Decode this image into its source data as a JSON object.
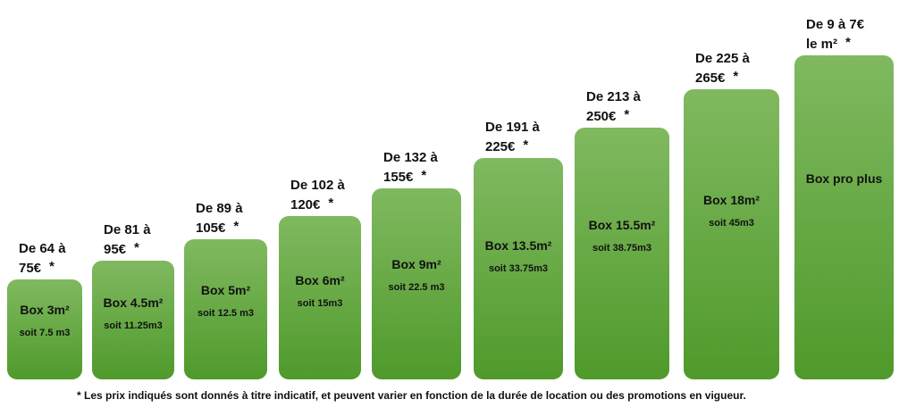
{
  "boxes": [
    {
      "price_from": "De 64 à",
      "price_to": "75€",
      "name": "Box 3m²",
      "volume": "soit 7.5 m3"
    },
    {
      "price_from": "De 81 à",
      "price_to": "95€",
      "name": "Box 4.5m²",
      "volume": "soit 11.25m3"
    },
    {
      "price_from": "De 89 à",
      "price_to": "105€",
      "name": "Box 5m²",
      "volume": "soit 12.5 m3"
    },
    {
      "price_from": "De 102 à",
      "price_to": "120€",
      "name": "Box 6m²",
      "volume": "soit 15m3"
    },
    {
      "price_from": "De 132 à",
      "price_to": "155€",
      "name": "Box 9m²",
      "volume": "soit 22.5 m3"
    },
    {
      "price_from": "De 191 à",
      "price_to": "225€",
      "name": "Box 13.5m²",
      "volume": "soit 33.75m3"
    },
    {
      "price_from": "De 213 à",
      "price_to": "250€",
      "name": "Box 15.5m²",
      "volume": "soit 38.75m3"
    },
    {
      "price_from": "De 225 à",
      "price_to": "265€",
      "name": "Box 18m²",
      "volume": "soit 45m3"
    },
    {
      "price_from": "De 9 à 7€",
      "price_to": "le m²",
      "name": "Box pro plus"
    }
  ],
  "note_marker": "*",
  "footnote": "*  Les prix indiqués sont donnés à titre indicatif, et peuvent varier en fonction de la durée de location ou des promotions en vigueur."
}
